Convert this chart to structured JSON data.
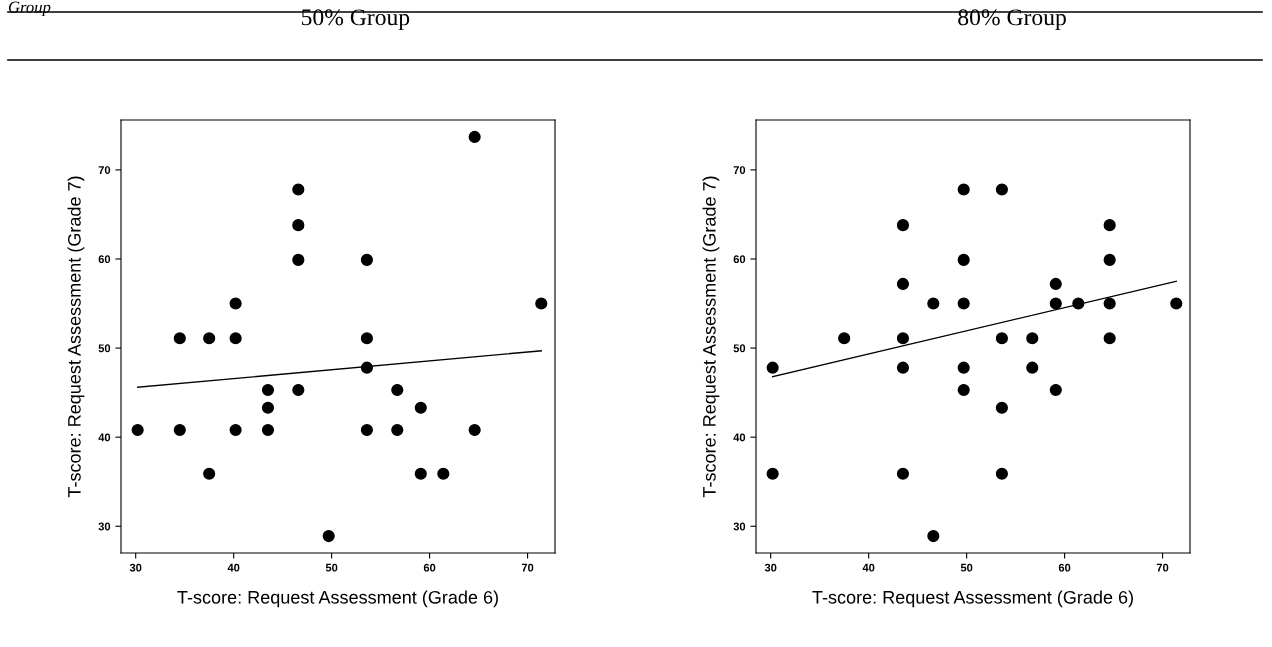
{
  "chart_data": [
    {
      "type": "scatter",
      "title": "50% Group",
      "annotations": [
        "Group"
      ],
      "xlabel": "T-score: Request Assessment (Grade 6)",
      "ylabel": "T-score: Request Assessment (Grade 7)",
      "xlim": [
        28.5,
        72.8
      ],
      "ylim": [
        27,
        75.6
      ],
      "xticks": [
        30,
        40,
        50,
        60,
        70
      ],
      "yticks": [
        30,
        40,
        50,
        60,
        70
      ],
      "grid": false,
      "legend": false,
      "series": [
        {
          "color": "#000000",
          "marker": "circle",
          "x": [
            30.2,
            34.5,
            34.5,
            37.5,
            37.5,
            40.2,
            40.2,
            40.2,
            43.5,
            43.5,
            43.5,
            46.6,
            46.6,
            46.6,
            46.6,
            49.7,
            53.6,
            53.6,
            53.6,
            53.6,
            56.7,
            56.7,
            59.1,
            59.1,
            61.4,
            64.6,
            64.6,
            71.4
          ],
          "values": [
            40.8,
            51.1,
            40.8,
            51.1,
            35.9,
            55.0,
            51.1,
            40.8,
            45.3,
            43.3,
            40.8,
            67.8,
            63.8,
            59.9,
            45.3,
            28.9,
            59.9,
            51.1,
            47.8,
            40.8,
            45.3,
            40.8,
            43.3,
            35.9,
            35.9,
            73.7,
            40.8,
            55.0
          ]
        },
        {
          "type": "line",
          "color": "#000000",
          "marker": "none",
          "line_style": "solid",
          "x": [
            30.2,
            71.4
          ],
          "values": [
            45.6,
            49.7
          ]
        }
      ]
    },
    {
      "type": "scatter",
      "title": "80% Group",
      "xlabel": "T-score: Request Assessment (Grade 6)",
      "ylabel": "T-score: Request Assessment (Grade 7)",
      "xlim": [
        28.5,
        72.8
      ],
      "ylim": [
        27,
        75.6
      ],
      "xticks": [
        30,
        40,
        50,
        60,
        70
      ],
      "yticks": [
        30,
        40,
        50,
        60,
        70
      ],
      "grid": false,
      "legend": false,
      "series": [
        {
          "color": "#000000",
          "marker": "circle",
          "x": [
            30.2,
            30.2,
            37.5,
            43.5,
            43.5,
            43.5,
            43.5,
            43.5,
            46.6,
            46.6,
            49.7,
            49.7,
            49.7,
            49.7,
            49.7,
            53.6,
            53.6,
            53.6,
            53.6,
            56.7,
            56.7,
            59.1,
            59.1,
            59.1,
            61.4,
            64.6,
            64.6,
            64.6,
            64.6,
            71.4
          ],
          "values": [
            47.8,
            35.9,
            51.1,
            63.8,
            57.2,
            51.1,
            47.8,
            35.9,
            55.0,
            28.9,
            67.8,
            59.9,
            55.0,
            47.8,
            45.3,
            67.8,
            51.1,
            43.3,
            35.9,
            51.1,
            47.8,
            57.2,
            55.0,
            45.3,
            55.0,
            63.8,
            59.9,
            55.0,
            51.1,
            55.0
          ]
        },
        {
          "type": "line",
          "color": "#000000",
          "marker": "none",
          "line_style": "solid",
          "x": [
            30.2,
            71.4
          ],
          "values": [
            46.8,
            57.5
          ]
        }
      ]
    }
  ]
}
